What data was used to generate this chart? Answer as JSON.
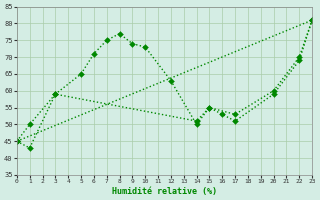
{
  "xlabel": "Humidité relative (%)",
  "background_color": "#d4ede4",
  "grid_color": "#aaccaa",
  "line_color": "#008800",
  "ylim": [
    35,
    85
  ],
  "xlim": [
    0,
    23
  ],
  "yticks": [
    35,
    40,
    45,
    50,
    55,
    60,
    65,
    70,
    75,
    80,
    85
  ],
  "xticks": [
    0,
    1,
    2,
    3,
    4,
    5,
    6,
    7,
    8,
    9,
    10,
    11,
    12,
    13,
    14,
    15,
    16,
    17,
    18,
    19,
    20,
    21,
    22,
    23
  ],
  "line1_x": [
    0,
    1,
    3,
    5,
    6,
    7,
    8,
    9,
    10,
    12,
    14,
    15,
    17,
    20,
    22,
    23
  ],
  "line1_y": [
    45,
    43,
    59,
    65,
    71,
    75,
    77,
    74,
    73,
    63,
    50,
    55,
    53,
    60,
    70,
    81
  ],
  "line2_x": [
    0,
    23
  ],
  "line2_y": [
    45,
    81
  ],
  "line3_x": [
    0,
    1,
    3,
    14,
    15,
    16,
    17,
    20,
    22,
    23
  ],
  "line3_y": [
    45,
    50,
    59,
    51,
    55,
    53,
    51,
    59,
    69,
    81
  ],
  "markersize": 3,
  "linewidth": 1.0
}
